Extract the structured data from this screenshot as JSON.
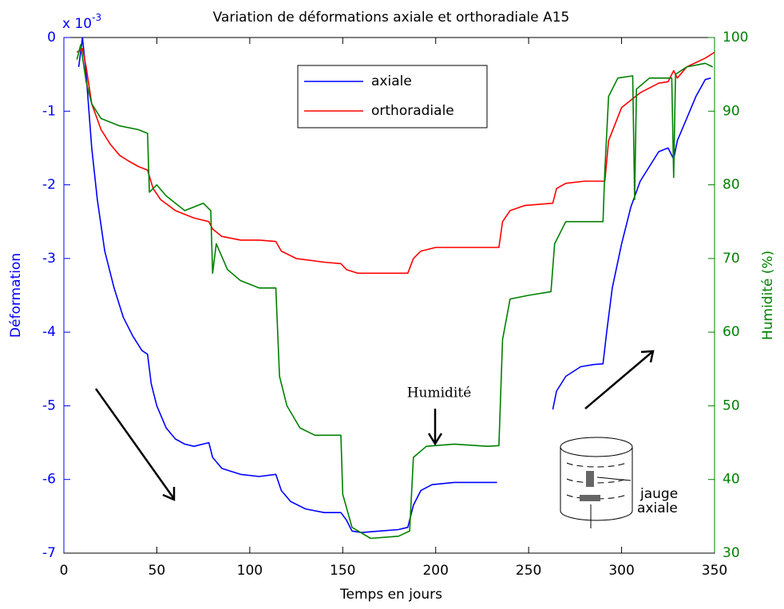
{
  "chart_data": {
    "type": "line",
    "title": "Variation de déformations axiale et orthoradiale A15",
    "xlabel": "Temps en jours",
    "ylabel": "Déformation",
    "y2label": "Humidité (%)",
    "y_exponent": {
      "base": "x 10",
      "power": "-3"
    },
    "xlim": [
      0,
      350
    ],
    "xticks": [
      0,
      50,
      100,
      150,
      200,
      250,
      300,
      350
    ],
    "ylim": [
      -7,
      0
    ],
    "yticks": [
      0,
      -1,
      -2,
      -3,
      -4,
      -5,
      -6,
      -7
    ],
    "y2lim": [
      30,
      100
    ],
    "y2ticks": [
      30,
      40,
      50,
      60,
      70,
      80,
      90,
      100
    ],
    "left_axis_color": "#0000ff",
    "right_axis_color": "#008000",
    "legend": "top-center",
    "series": [
      {
        "name": "axiale",
        "color": "#0000ff",
        "x": [
          8,
          10,
          12,
          15,
          18,
          22,
          27,
          32,
          37,
          42,
          45,
          47,
          50,
          55,
          60,
          65,
          70,
          78,
          80,
          85,
          95,
          105,
          114,
          117,
          122,
          130,
          140,
          149,
          152,
          155,
          160,
          170,
          180,
          185,
          188,
          192,
          198,
          210,
          220,
          233,
          248,
          263,
          265,
          270,
          278,
          285,
          290,
          292,
          295,
          300,
          305,
          310,
          315,
          320,
          325,
          328,
          330,
          335,
          340,
          345,
          348
        ],
        "values": [
          -0.4,
          0,
          -0.5,
          -1.5,
          -2.2,
          -2.9,
          -3.4,
          -3.8,
          -4.05,
          -4.25,
          -4.3,
          -4.7,
          -5.0,
          -5.3,
          -5.45,
          -5.52,
          -5.55,
          -5.5,
          -5.7,
          -5.85,
          -5.93,
          -5.96,
          -5.93,
          -6.15,
          -6.3,
          -6.4,
          -6.45,
          -6.45,
          -6.55,
          -6.7,
          -6.72,
          -6.7,
          -6.68,
          -6.65,
          -6.35,
          -6.15,
          -6.07,
          -6.04,
          -6.04,
          -6.04,
          null,
          -5.05,
          -4.8,
          -4.6,
          -4.47,
          -4.44,
          -4.43,
          -4.0,
          -3.4,
          -2.8,
          -2.3,
          -1.95,
          -1.75,
          -1.55,
          -1.5,
          -1.65,
          -1.4,
          -1.1,
          -0.8,
          -0.57,
          -0.55
        ]
      },
      {
        "name": "orthoradiale",
        "color": "#ff0000",
        "x": [
          7,
          10,
          12,
          15,
          20,
          25,
          30,
          35,
          40,
          45,
          48,
          52,
          60,
          70,
          78,
          80,
          85,
          95,
          105,
          114,
          117,
          125,
          140,
          149,
          152,
          158,
          170,
          185,
          188,
          192,
          200,
          215,
          234,
          236,
          240,
          248,
          263,
          265,
          270,
          280,
          291,
          293,
          300,
          310,
          320,
          325,
          328,
          330,
          335,
          345,
          350
        ],
        "values": [
          -0.2,
          -0.15,
          -0.4,
          -0.9,
          -1.25,
          -1.45,
          -1.6,
          -1.68,
          -1.75,
          -1.8,
          -2.05,
          -2.2,
          -2.35,
          -2.45,
          -2.5,
          -2.6,
          -2.7,
          -2.75,
          -2.75,
          -2.77,
          -2.9,
          -3.0,
          -3.05,
          -3.07,
          -3.15,
          -3.2,
          -3.2,
          -3.2,
          -3.0,
          -2.9,
          -2.85,
          -2.85,
          -2.85,
          -2.5,
          -2.35,
          -2.28,
          -2.25,
          -2.05,
          -1.98,
          -1.95,
          -1.95,
          -1.4,
          -0.95,
          -0.75,
          -0.62,
          -0.6,
          -0.45,
          -0.55,
          -0.4,
          -0.28,
          -0.2
        ]
      },
      {
        "color": "#008000",
        "axis": "y2",
        "x": [
          7,
          9,
          12,
          15,
          20,
          30,
          40,
          45,
          46,
          50,
          55,
          65,
          75,
          79,
          80,
          82,
          88,
          95,
          105,
          114,
          116,
          120,
          127,
          135,
          149,
          150,
          155,
          165,
          180,
          186,
          188,
          195,
          210,
          228,
          234,
          236,
          240,
          250,
          262,
          264,
          270,
          280,
          290,
          291,
          293,
          298,
          306,
          307,
          308,
          315,
          327,
          328,
          329,
          335,
          345,
          349
        ],
        "values": [
          97,
          99,
          94,
          91,
          89,
          88,
          87.5,
          87,
          79,
          80,
          78.5,
          76.5,
          77.5,
          76.5,
          68,
          72,
          68.5,
          67,
          66,
          66,
          54,
          50,
          47,
          46,
          46,
          38,
          33.5,
          32,
          32.3,
          33,
          43,
          44.5,
          44.8,
          44.5,
          44.6,
          59,
          64.5,
          65,
          65.5,
          72,
          75,
          75,
          75,
          82,
          92,
          94.5,
          94.8,
          78,
          93,
          94.5,
          94.5,
          81,
          95,
          96,
          96.5,
          96
        ]
      }
    ],
    "annotation": "Humidité",
    "inset_labels": [
      "jauge",
      "axiale"
    ]
  }
}
